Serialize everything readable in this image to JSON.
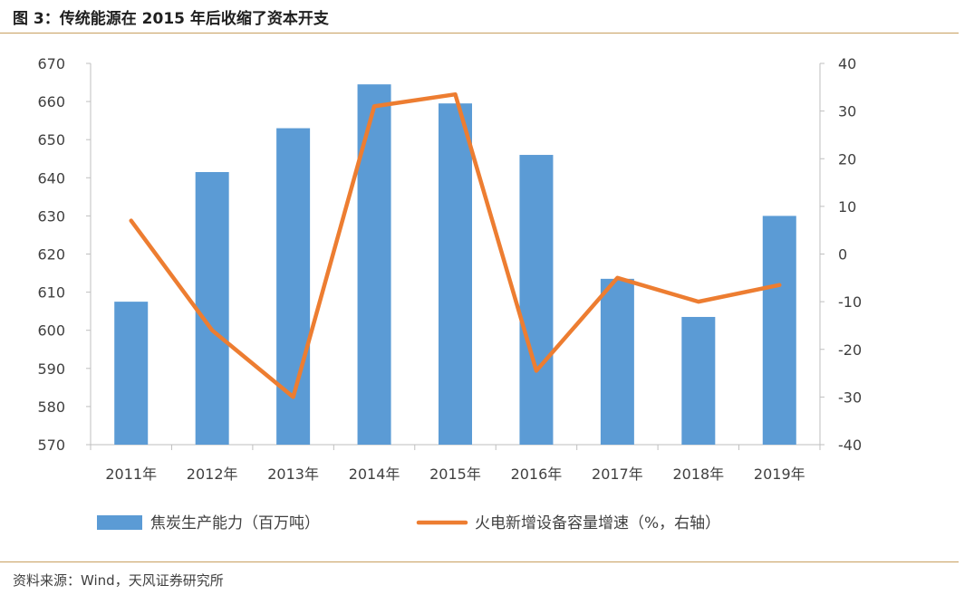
{
  "title": "图 3：传统能源在 2015 年后收缩了资本开支",
  "source": "资料来源：Wind，天风证券研究所",
  "chart_data": {
    "type": "bar",
    "categories": [
      "2011年",
      "2012年",
      "2013年",
      "2014年",
      "2015年",
      "2016年",
      "2017年",
      "2018年",
      "2019年"
    ],
    "series": [
      {
        "name": "焦炭生产能力（百万吨）",
        "type": "bar",
        "axis": "left",
        "color": "#5b9bd5",
        "values": [
          607.5,
          641.5,
          653,
          664.5,
          659.5,
          646,
          613.5,
          603.5,
          630
        ]
      },
      {
        "name": "火电新增设备容量增速（%，右轴）",
        "type": "line",
        "axis": "right",
        "color": "#ed7d31",
        "values": [
          7,
          -16,
          -30,
          31,
          33.5,
          -24.5,
          -5,
          -10,
          -6.5
        ]
      }
    ],
    "left_axis": {
      "min": 570,
      "max": 670,
      "step": 10
    },
    "right_axis": {
      "min": -40,
      "max": 40,
      "step": 10
    },
    "legend_position": "bottom",
    "grid": false
  }
}
